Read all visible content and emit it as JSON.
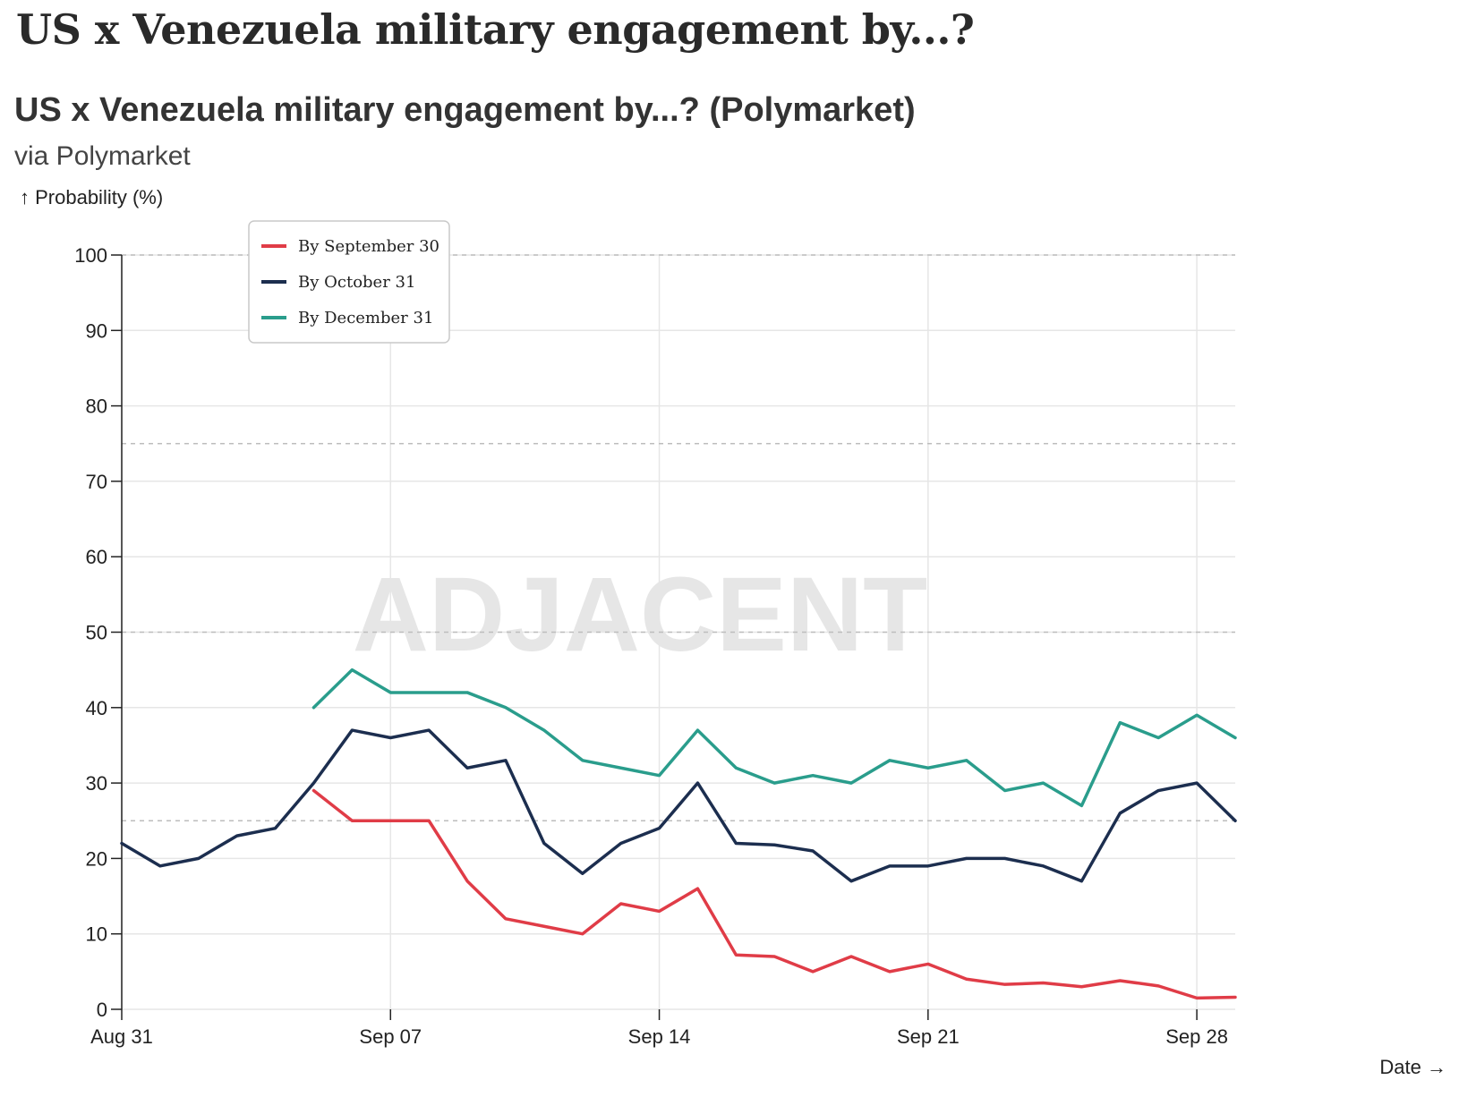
{
  "page": {
    "title": "US x Venezuela military engagement by...?"
  },
  "chart": {
    "title": "US x Venezuela military engagement by...? (Polymarket)",
    "subtitle": "via Polymarket",
    "watermark": "ADJACENT"
  },
  "chart_data": {
    "type": "line",
    "ylabel": "↑ Probability (%)",
    "xlabel": "Date →",
    "ylim": [
      0,
      100
    ],
    "yticks": [
      0,
      10,
      20,
      30,
      40,
      50,
      60,
      70,
      80,
      90,
      100
    ],
    "xlim": [
      "2025-08-31",
      "2025-09-29"
    ],
    "xticks": [
      {
        "date": "2025-08-31",
        "label": "Aug 31"
      },
      {
        "date": "2025-09-07",
        "label": "Sep 07"
      },
      {
        "date": "2025-09-14",
        "label": "Sep 14"
      },
      {
        "date": "2025-09-21",
        "label": "Sep 21"
      },
      {
        "date": "2025-09-28",
        "label": "Sep 28"
      }
    ],
    "reference_lines": [
      25,
      50,
      75,
      100
    ],
    "grid": true,
    "legend_position": "top-left",
    "series": [
      {
        "name": "By September 30",
        "color": "#e03c47",
        "x": [
          "2025-09-05",
          "2025-09-06",
          "2025-09-07",
          "2025-09-08",
          "2025-09-09",
          "2025-09-10",
          "2025-09-11",
          "2025-09-12",
          "2025-09-13",
          "2025-09-14",
          "2025-09-15",
          "2025-09-16",
          "2025-09-17",
          "2025-09-18",
          "2025-09-19",
          "2025-09-20",
          "2025-09-21",
          "2025-09-22",
          "2025-09-23",
          "2025-09-24",
          "2025-09-25",
          "2025-09-26",
          "2025-09-27",
          "2025-09-28",
          "2025-09-29"
        ],
        "values": [
          29,
          25,
          25,
          25,
          17,
          12,
          11,
          10,
          14,
          13,
          16,
          7.2,
          7,
          5,
          7,
          5,
          6,
          4,
          3.3,
          3.5,
          3,
          3.8,
          3.1,
          1.5,
          1.6
        ]
      },
      {
        "name": "By October 31",
        "color": "#1c2e4f",
        "x": [
          "2025-08-31",
          "2025-09-01",
          "2025-09-02",
          "2025-09-03",
          "2025-09-04",
          "2025-09-05",
          "2025-09-06",
          "2025-09-07",
          "2025-09-08",
          "2025-09-09",
          "2025-09-10",
          "2025-09-11",
          "2025-09-12",
          "2025-09-13",
          "2025-09-14",
          "2025-09-15",
          "2025-09-16",
          "2025-09-17",
          "2025-09-18",
          "2025-09-19",
          "2025-09-20",
          "2025-09-21",
          "2025-09-22",
          "2025-09-23",
          "2025-09-24",
          "2025-09-25",
          "2025-09-26",
          "2025-09-27",
          "2025-09-28",
          "2025-09-29"
        ],
        "values": [
          22,
          19,
          20,
          23,
          24,
          30,
          37,
          36,
          37,
          32,
          33,
          22,
          18,
          22,
          24,
          30,
          22,
          21.8,
          21,
          17,
          19,
          19,
          20,
          20,
          19,
          17,
          26,
          29,
          30,
          25
        ]
      },
      {
        "name": "By December 31",
        "color": "#2a9d8c",
        "x": [
          "2025-09-05",
          "2025-09-06",
          "2025-09-07",
          "2025-09-08",
          "2025-09-09",
          "2025-09-10",
          "2025-09-11",
          "2025-09-12",
          "2025-09-13",
          "2025-09-14",
          "2025-09-15",
          "2025-09-16",
          "2025-09-17",
          "2025-09-18",
          "2025-09-19",
          "2025-09-20",
          "2025-09-21",
          "2025-09-22",
          "2025-09-23",
          "2025-09-24",
          "2025-09-25",
          "2025-09-26",
          "2025-09-27",
          "2025-09-28",
          "2025-09-29"
        ],
        "values": [
          40,
          45,
          42,
          42,
          42,
          40,
          37,
          33,
          32,
          31,
          37,
          32,
          30,
          31,
          30,
          33,
          32,
          33,
          29,
          30,
          27,
          38,
          36,
          39,
          36
        ]
      }
    ]
  }
}
